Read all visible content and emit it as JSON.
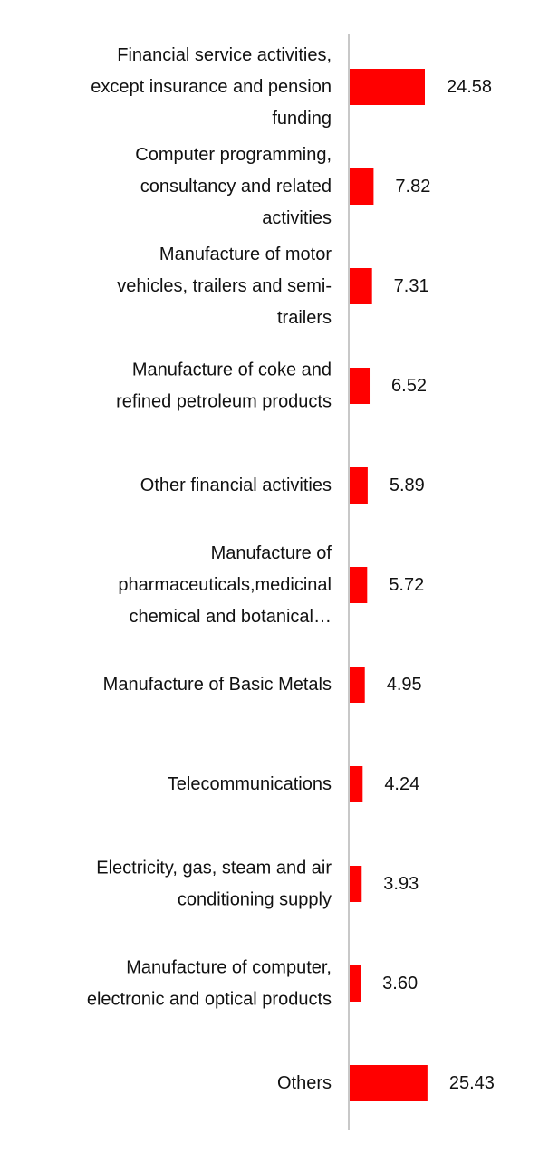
{
  "chart_data": {
    "type": "bar",
    "orientation": "horizontal",
    "title": "",
    "xlabel": "",
    "ylabel": "",
    "grid": false,
    "legend": "none",
    "bar_color": "#ff0000",
    "axis_color": "#c8c8c8",
    "xlim": [
      0,
      30
    ],
    "categories": [
      "Financial service activities, except insurance and pension funding",
      "Computer programming, consultancy and related activities",
      "Manufacture of motor vehicles, trailers and semi-trailers",
      "Manufacture of coke and refined petroleum products",
      "Other financial activities",
      "Manufacture of pharmaceuticals,medicinal chemical and botanical…",
      "Manufacture of Basic Metals",
      "Telecommunications",
      "Electricity, gas, steam and air conditioning supply",
      "Manufacture of computer, electronic and optical products",
      "Others"
    ],
    "category_lines": [
      [
        "Financial service activities,",
        "except insurance and pension",
        "funding"
      ],
      [
        "Computer programming,",
        "consultancy and related",
        "activities"
      ],
      [
        "Manufacture of motor",
        "vehicles, trailers and semi-",
        "trailers"
      ],
      [
        "Manufacture of coke and",
        "refined petroleum products"
      ],
      [
        "Other financial activities"
      ],
      [
        "Manufacture of",
        "pharmaceuticals,medicinal",
        "chemical and botanical…"
      ],
      [
        "Manufacture of Basic Metals"
      ],
      [
        "Telecommunications"
      ],
      [
        "Electricity, gas, steam and air",
        "conditioning supply"
      ],
      [
        "Manufacture of computer,",
        "electronic and optical products"
      ],
      [
        "Others"
      ]
    ],
    "values": [
      24.58,
      7.82,
      7.31,
      6.52,
      5.89,
      5.72,
      4.95,
      4.24,
      3.93,
      3.6,
      25.43
    ],
    "value_labels": [
      "24.58",
      "7.82",
      "7.31",
      "6.52",
      "5.89",
      "5.72",
      "4.95",
      "4.24",
      "3.93",
      "3.60",
      "25.43"
    ]
  }
}
